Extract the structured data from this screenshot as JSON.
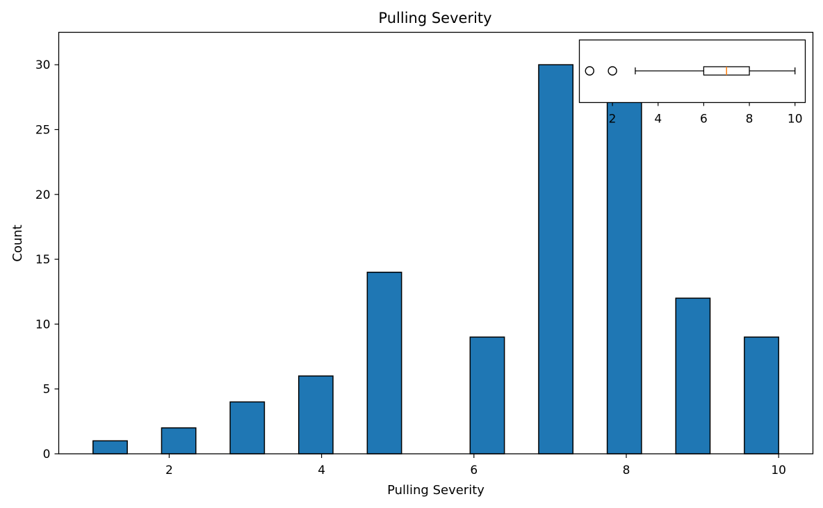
{
  "chart_data": [
    {
      "type": "bar",
      "title": "Pulling Severity",
      "xlabel": "Pulling Severity",
      "ylabel": "Count",
      "bars": [
        {
          "x0": 1.0,
          "x1": 1.45,
          "value": 1
        },
        {
          "x0": 1.9,
          "x1": 2.35,
          "value": 2
        },
        {
          "x0": 2.8,
          "x1": 3.25,
          "value": 4
        },
        {
          "x0": 3.7,
          "x1": 4.15,
          "value": 6
        },
        {
          "x0": 4.6,
          "x1": 5.05,
          "value": 14
        },
        {
          "x0": 5.95,
          "x1": 6.4,
          "value": 9
        },
        {
          "x0": 6.85,
          "x1": 7.3,
          "value": 30
        },
        {
          "x0": 7.75,
          "x1": 8.2,
          "value": 29
        },
        {
          "x0": 8.65,
          "x1": 9.1,
          "value": 12
        },
        {
          "x0": 9.55,
          "x1": 10.0,
          "value": 9
        }
      ],
      "xlim": [
        0.55,
        10.45
      ],
      "ylim": [
        0,
        32.5
      ],
      "xticks": [
        2,
        4,
        6,
        8,
        10
      ],
      "yticks": [
        0,
        5,
        10,
        15,
        20,
        25,
        30
      ],
      "bar_color": "#1f77b4",
      "edge_color": "#000000",
      "grid": false
    },
    {
      "type": "boxplot",
      "orientation": "horizontal",
      "placement": "inset top-right",
      "xlim": [
        0.55,
        10.45
      ],
      "xticks": [
        2,
        4,
        6,
        8,
        10
      ],
      "whisker_low": 3,
      "q1": 6,
      "median": 7,
      "q3": 8,
      "whisker_high": 10,
      "outliers": [
        1,
        2
      ],
      "median_color": "#ff7f0e"
    }
  ]
}
